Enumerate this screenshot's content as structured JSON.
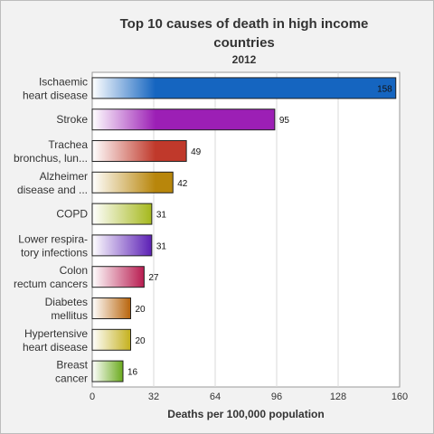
{
  "chart_data": {
    "type": "bar",
    "orientation": "horizontal",
    "title": "Top 10 causes of death in high income countries",
    "title_line1": "Top 10 causes of death in high income",
    "title_line2": "countries",
    "subtitle": "2012",
    "xlabel": "Deaths per 100,000 population",
    "xlim": [
      0,
      160
    ],
    "xticks": [
      "0",
      "32",
      "64",
      "96",
      "128",
      "160"
    ],
    "grid": true,
    "categories": [
      {
        "line1": "Ischaemic",
        "line2": "heart disease"
      },
      {
        "line1": "Stroke",
        "line2": ""
      },
      {
        "line1": "Trachea",
        "line2": "bronchus, lun..."
      },
      {
        "line1": "Alzheimer",
        "line2": "disease and ..."
      },
      {
        "line1": "COPD",
        "line2": ""
      },
      {
        "line1": "Lower respira-",
        "line2": "tory infections"
      },
      {
        "line1": "Colon",
        "line2": "rectum cancers"
      },
      {
        "line1": "Diabetes",
        "line2": "mellitus"
      },
      {
        "line1": "Hypertensive",
        "line2": "heart disease"
      },
      {
        "line1": "Breast",
        "line2": "cancer"
      }
    ],
    "values": [
      158,
      95,
      49,
      42,
      31,
      31,
      27,
      20,
      20,
      16
    ],
    "colors": [
      "#1565c0",
      "#9c1fb5",
      "#c0392b",
      "#b8860b",
      "#a5b81c",
      "#5b1fb5",
      "#b81c50",
      "#b8640b",
      "#c4b01c",
      "#6aaa1c"
    ]
  }
}
